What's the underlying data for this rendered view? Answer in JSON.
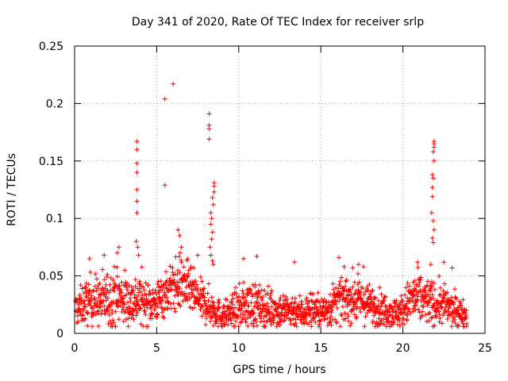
{
  "chart_data": {
    "type": "scatter",
    "title": "Day 341 of 2020, Rate Of TEC Index for receiver srlp",
    "xlabel": "GPS time / hours",
    "ylabel": "ROTI / TECUs",
    "xlim": [
      0,
      25
    ],
    "ylim": [
      0,
      0.25
    ],
    "x_ticks": [
      0,
      5,
      10,
      15,
      20,
      25
    ],
    "x_tick_labels": [
      "0",
      "5",
      "10",
      "15",
      "20",
      "25"
    ],
    "y_ticks": [
      0,
      0.05,
      0.1,
      0.15,
      0.2,
      0.25
    ],
    "y_tick_labels": [
      "0",
      "0.05",
      "0.1",
      "0.15",
      "0.2",
      "0.25"
    ],
    "grid": true,
    "marker": "plus",
    "color": "#ff0000",
    "envelope_x": [
      0,
      0.5,
      1,
      1.5,
      2,
      2.5,
      3,
      3.5,
      4,
      4.5,
      5,
      5.5,
      6,
      6.5,
      7,
      7.5,
      8,
      8.5,
      9,
      9.5,
      10,
      10.5,
      11,
      11.5,
      12,
      12.5,
      13,
      13.5,
      14,
      14.5,
      15,
      15.5,
      16,
      16.5,
      17,
      17.5,
      18,
      18.5,
      19,
      19.5,
      20,
      20.5,
      21,
      21.5,
      22,
      22.5,
      23,
      23.5,
      24
    ],
    "envelope_mean": [
      0.02,
      0.025,
      0.03,
      0.028,
      0.03,
      0.032,
      0.03,
      0.028,
      0.03,
      0.026,
      0.028,
      0.035,
      0.04,
      0.045,
      0.038,
      0.03,
      0.025,
      0.02,
      0.015,
      0.018,
      0.022,
      0.025,
      0.025,
      0.022,
      0.022,
      0.02,
      0.02,
      0.02,
      0.018,
      0.022,
      0.018,
      0.022,
      0.028,
      0.03,
      0.03,
      0.028,
      0.025,
      0.022,
      0.02,
      0.018,
      0.02,
      0.03,
      0.03,
      0.028,
      0.025,
      0.025,
      0.02,
      0.018,
      0.015
    ],
    "envelope_spread": [
      0.01,
      0.012,
      0.015,
      0.015,
      0.018,
      0.018,
      0.017,
      0.015,
      0.016,
      0.013,
      0.012,
      0.014,
      0.015,
      0.018,
      0.015,
      0.012,
      0.012,
      0.01,
      0.008,
      0.01,
      0.012,
      0.014,
      0.014,
      0.012,
      0.012,
      0.011,
      0.011,
      0.01,
      0.01,
      0.012,
      0.009,
      0.012,
      0.013,
      0.014,
      0.014,
      0.012,
      0.012,
      0.011,
      0.01,
      0.009,
      0.01,
      0.015,
      0.016,
      0.014,
      0.013,
      0.012,
      0.01,
      0.009,
      0.008
    ],
    "outliers": [
      {
        "x": 3.8,
        "y": 0.167
      },
      {
        "x": 3.8,
        "y": 0.16
      },
      {
        "x": 3.8,
        "y": 0.148
      },
      {
        "x": 3.8,
        "y": 0.14
      },
      {
        "x": 3.8,
        "y": 0.125
      },
      {
        "x": 3.8,
        "y": 0.115
      },
      {
        "x": 3.8,
        "y": 0.105
      },
      {
        "x": 3.75,
        "y": 0.08
      },
      {
        "x": 3.85,
        "y": 0.075
      },
      {
        "x": 3.9,
        "y": 0.068
      },
      {
        "x": 5.5,
        "y": 0.204
      },
      {
        "x": 5.5,
        "y": 0.129
      },
      {
        "x": 6.0,
        "y": 0.217
      },
      {
        "x": 6.3,
        "y": 0.09
      },
      {
        "x": 6.4,
        "y": 0.085
      },
      {
        "x": 6.5,
        "y": 0.075
      },
      {
        "x": 7.5,
        "y": 0.068
      },
      {
        "x": 8.2,
        "y": 0.191
      },
      {
        "x": 8.2,
        "y": 0.181
      },
      {
        "x": 8.2,
        "y": 0.178
      },
      {
        "x": 8.2,
        "y": 0.169
      },
      {
        "x": 8.5,
        "y": 0.131
      },
      {
        "x": 8.5,
        "y": 0.128
      },
      {
        "x": 8.5,
        "y": 0.123
      },
      {
        "x": 8.4,
        "y": 0.118
      },
      {
        "x": 8.45,
        "y": 0.112
      },
      {
        "x": 8.3,
        "y": 0.105
      },
      {
        "x": 8.35,
        "y": 0.1
      },
      {
        "x": 8.3,
        "y": 0.095
      },
      {
        "x": 8.4,
        "y": 0.088
      },
      {
        "x": 8.35,
        "y": 0.082
      },
      {
        "x": 8.25,
        "y": 0.075
      },
      {
        "x": 8.3,
        "y": 0.068
      },
      {
        "x": 8.4,
        "y": 0.063
      },
      {
        "x": 8.45,
        "y": 0.06
      },
      {
        "x": 2.7,
        "y": 0.075
      },
      {
        "x": 2.6,
        "y": 0.07
      },
      {
        "x": 0.9,
        "y": 0.065
      },
      {
        "x": 1.8,
        "y": 0.068
      },
      {
        "x": 10.3,
        "y": 0.065
      },
      {
        "x": 11.1,
        "y": 0.067
      },
      {
        "x": 13.4,
        "y": 0.062
      },
      {
        "x": 16.1,
        "y": 0.066
      },
      {
        "x": 17.3,
        "y": 0.06
      },
      {
        "x": 17.6,
        "y": 0.058
      },
      {
        "x": 21.9,
        "y": 0.167
      },
      {
        "x": 21.9,
        "y": 0.165
      },
      {
        "x": 21.9,
        "y": 0.162
      },
      {
        "x": 21.85,
        "y": 0.158
      },
      {
        "x": 21.9,
        "y": 0.15
      },
      {
        "x": 21.8,
        "y": 0.138
      },
      {
        "x": 21.85,
        "y": 0.135
      },
      {
        "x": 21.8,
        "y": 0.127
      },
      {
        "x": 21.8,
        "y": 0.119
      },
      {
        "x": 21.75,
        "y": 0.105
      },
      {
        "x": 21.85,
        "y": 0.098
      },
      {
        "x": 21.9,
        "y": 0.09
      },
      {
        "x": 21.8,
        "y": 0.083
      },
      {
        "x": 21.85,
        "y": 0.079
      },
      {
        "x": 21.7,
        "y": 0.06
      },
      {
        "x": 20.9,
        "y": 0.062
      },
      {
        "x": 22.5,
        "y": 0.062
      },
      {
        "x": 23.0,
        "y": 0.057
      }
    ]
  }
}
